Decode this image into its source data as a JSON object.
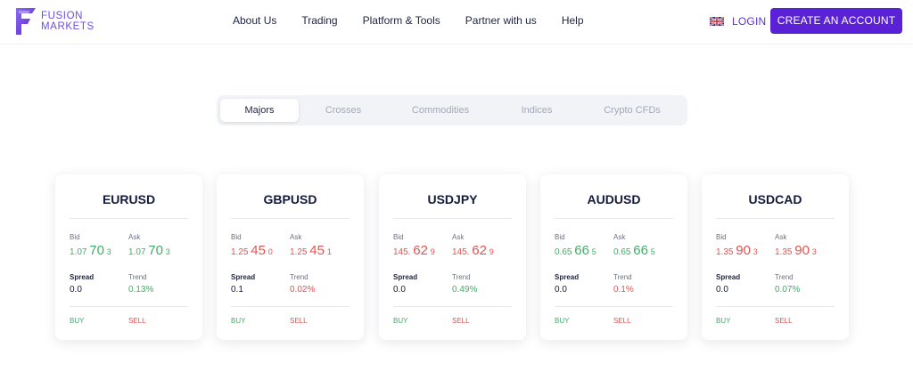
{
  "brand": {
    "line1": "FUSION",
    "line2": "MARKETS",
    "color": "#6a4fe0"
  },
  "nav": [
    {
      "label": "About Us"
    },
    {
      "label": "Trading"
    },
    {
      "label": "Platform & Tools"
    },
    {
      "label": "Partner with us"
    },
    {
      "label": "Help"
    }
  ],
  "header": {
    "lang_icon": "uk-flag-icon",
    "login_label": "LOGIN",
    "cta_label": "CREATE AN ACCOUNT",
    "cta_color": "#5b21d6"
  },
  "tabs": [
    {
      "label": "Majors",
      "active": true
    },
    {
      "label": "Crosses",
      "active": false
    },
    {
      "label": "Commodities",
      "active": false
    },
    {
      "label": "Indices",
      "active": false
    },
    {
      "label": "Crypto CFDs",
      "active": false
    }
  ],
  "labels": {
    "bid": "Bid",
    "ask": "Ask",
    "spread": "Spread",
    "trend": "Trend",
    "buy": "BUY",
    "sell": "SELL"
  },
  "colors": {
    "up": "#3fae66",
    "down": "#e4524f"
  },
  "cards": [
    {
      "pair": "EURUSD",
      "direction": "up",
      "bid": {
        "pre": "1.07",
        "big": "70",
        "small": "3"
      },
      "ask": {
        "pre": "1.07",
        "big": "70",
        "small": "3"
      },
      "spread": "0.0",
      "trend": "0.13%"
    },
    {
      "pair": "GBPUSD",
      "direction": "down",
      "bid": {
        "pre": "1.25",
        "big": "45",
        "small": "0"
      },
      "ask": {
        "pre": "1.25",
        "big": "45",
        "small": "1"
      },
      "spread": "0.1",
      "trend": "0.02%"
    },
    {
      "pair": "USDJPY",
      "direction": "mixed",
      "bid": {
        "pre": "145.",
        "big": "62",
        "small": "9"
      },
      "ask": {
        "pre": "145.",
        "big": "62",
        "small": "9"
      },
      "spread": "0.0",
      "trend": "0.49%"
    },
    {
      "pair": "AUDUSD",
      "direction": "mixed2",
      "bid": {
        "pre": "0.65",
        "big": "66",
        "small": "5"
      },
      "ask": {
        "pre": "0.65",
        "big": "66",
        "small": "5"
      },
      "spread": "0.0",
      "trend": "0.1%"
    },
    {
      "pair": "USDCAD",
      "direction": "mixed3",
      "bid": {
        "pre": "1.35",
        "big": "90",
        "small": "3"
      },
      "ask": {
        "pre": "1.35",
        "big": "90",
        "small": "3"
      },
      "spread": "0.0",
      "trend": "0.07%"
    }
  ]
}
